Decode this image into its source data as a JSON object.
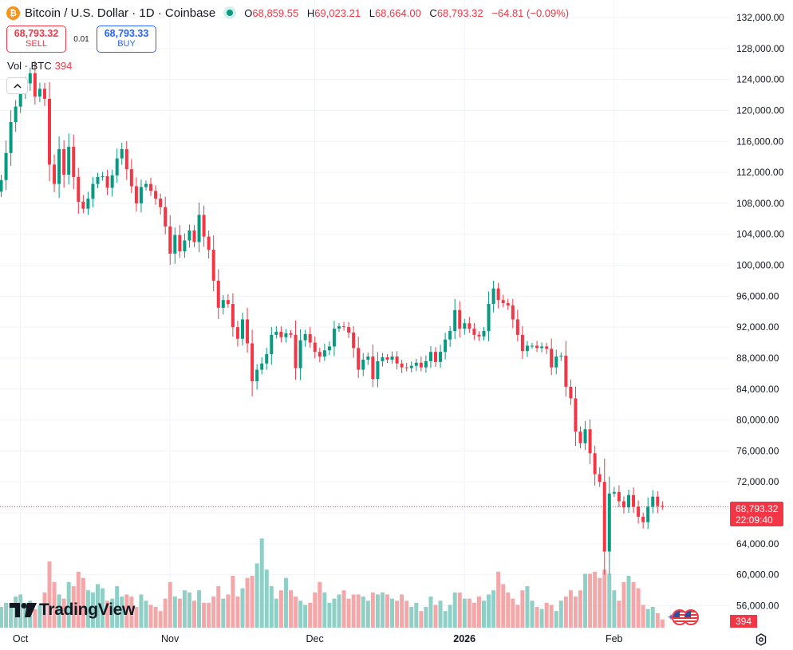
{
  "header": {
    "symbol_title": "Bitcoin / U.S. Dollar · 1D · Coinbase",
    "logo_letter": "₿",
    "ohlc": {
      "o_label": "O",
      "o": "68,859.55",
      "h_label": "H",
      "h": "69,023.21",
      "l_label": "L",
      "l": "68,664.00",
      "c_label": "C",
      "c": "68,793.32",
      "change": "−64.81 (−0.09%)"
    }
  },
  "trade": {
    "sell_price": "68,793.32",
    "sell_label": "SELL",
    "spread": "0.01",
    "buy_price": "68,793.33",
    "buy_label": "BUY"
  },
  "volume_legend": {
    "label": "Vol · BTC",
    "value": "394"
  },
  "branding": {
    "name": "TradingView"
  },
  "price_scale": {
    "last_price": "68,793.32",
    "countdown": "22:09:40",
    "volume_tag": "394"
  },
  "colors": {
    "up": "#089981",
    "down": "#f23645",
    "up_vol": "#8fcfc6",
    "down_vol": "#f3a7a9",
    "grid": "#f0f3fa"
  },
  "icons": [
    "bitcoin-logo-icon",
    "market-status-icon",
    "chevron-up-icon",
    "tradingview-logo-icon",
    "us-flag-icon",
    "sparkle-icon",
    "settings-icon"
  ],
  "chart_data": {
    "type": "candlestick",
    "title": "Bitcoin / U.S. Dollar · 1D · Coinbase",
    "y_ticks": [
      56000,
      60000,
      64000,
      68000,
      72000,
      76000,
      80000,
      84000,
      88000,
      92000,
      96000,
      100000,
      104000,
      108000,
      112000,
      116000,
      120000,
      124000,
      128000,
      132000
    ],
    "y_tick_labels": [
      "56,000.00",
      "60,000.00",
      "64,000.00",
      "68,000.00",
      "72,000.00",
      "76,000.00",
      "80,000.00",
      "84,000.00",
      "88,000.00",
      "92,000.00",
      "96,000.00",
      "100,000.00",
      "104,000.00",
      "108,000.00",
      "112,000.00",
      "116,000.00",
      "120,000.00",
      "124,000.00",
      "128,000.00",
      "132,000.00"
    ],
    "x_tick_labels": [
      "Oct",
      "Nov",
      "Dec",
      "2026",
      "Feb"
    ],
    "x_tick_index": [
      2,
      33,
      63,
      94,
      125
    ],
    "grid": true,
    "first_date": "2025-09-30",
    "closes": [
      111000,
      114500,
      118500,
      120500,
      122300,
      123500,
      124800,
      121800,
      122800,
      121500,
      113000,
      110500,
      115000,
      111700,
      115300,
      111400,
      108200,
      107300,
      108600,
      110500,
      111400,
      111500,
      110000,
      111600,
      113800,
      115000,
      112400,
      110200,
      108000,
      110100,
      110500,
      109600,
      108600,
      107500,
      105000,
      101500,
      103900,
      101800,
      103200,
      104500,
      103000,
      106500,
      103700,
      102000,
      98000,
      94500,
      95500,
      95000,
      92000,
      90500,
      93000,
      89900,
      85000,
      86500,
      87300,
      88500,
      91000,
      91400,
      90700,
      91200,
      91000,
      86700,
      90300,
      91100,
      90000,
      88800,
      88200,
      89000,
      89500,
      91800,
      92100,
      92000,
      91300,
      89300,
      86500,
      87800,
      88200,
      85300,
      87600,
      88100,
      87800,
      88200,
      87300,
      86800,
      86700,
      87000,
      87400,
      86800,
      87600,
      88800,
      87500,
      88800,
      90400,
      91500,
      94200,
      91800,
      92500,
      91800,
      91000,
      90800,
      91500,
      95000,
      97000,
      95500,
      95100,
      94800,
      93000,
      91000,
      88900,
      89600,
      89600,
      89300,
      89500,
      89200,
      86800,
      88200,
      88300,
      84300,
      82800,
      78500,
      77000,
      78800,
      75700,
      73000,
      72000,
      63000,
      70500,
      70700,
      69500,
      68700,
      70300,
      68800,
      67500,
      66800,
      68800,
      70100,
      68900,
      68793
    ],
    "volumes": [
      5.0,
      6.0,
      6.0,
      7.5,
      8.0,
      6.0,
      6.5,
      4.5,
      5.5,
      8.5,
      16.0,
      11.0,
      8.0,
      7.0,
      11.0,
      10.0,
      13.5,
      12.0,
      9.0,
      8.5,
      10.5,
      9.5,
      6.5,
      7.0,
      10.0,
      7.5,
      8.0,
      7.5,
      5.0,
      8.0,
      6.5,
      5.5,
      5.0,
      4.0,
      7.0,
      11.0,
      7.5,
      7.0,
      9.0,
      8.5,
      6.5,
      9.0,
      6.0,
      6.0,
      7.5,
      10.0,
      7.0,
      8.0,
      12.5,
      7.5,
      9.5,
      12.0,
      12.5,
      15.5,
      21.5,
      14.0,
      10.0,
      7.0,
      9.0,
      12.0,
      9.0,
      7.5,
      6.5,
      5.5,
      6.0,
      8.5,
      11.0,
      8.5,
      6.0,
      7.0,
      8.0,
      9.0,
      7.0,
      8.0,
      8.0,
      7.5,
      6.5,
      8.5,
      8.0,
      8.5,
      8.0,
      7.0,
      6.5,
      8.0,
      6.5,
      5.0,
      6.0,
      4.0,
      5.0,
      7.5,
      5.5,
      6.5,
      4.0,
      5.5,
      8.5,
      8.5,
      7.0,
      7.0,
      6.0,
      7.5,
      6.5,
      8.0,
      9.0,
      13.5,
      10.5,
      8.5,
      7.0,
      5.5,
      9.0,
      10.0,
      6.5,
      5.0,
      4.5,
      6.0,
      5.5,
      4.0,
      6.5,
      7.5,
      9.0,
      7.5,
      9.0,
      13.0,
      13.0,
      13.5,
      12.0,
      14.0,
      13.0,
      9.0,
      6.5,
      11.0,
      12.5,
      11.0,
      9.5,
      5.5,
      4.5,
      5.0,
      3.5,
      2.0
    ]
  }
}
